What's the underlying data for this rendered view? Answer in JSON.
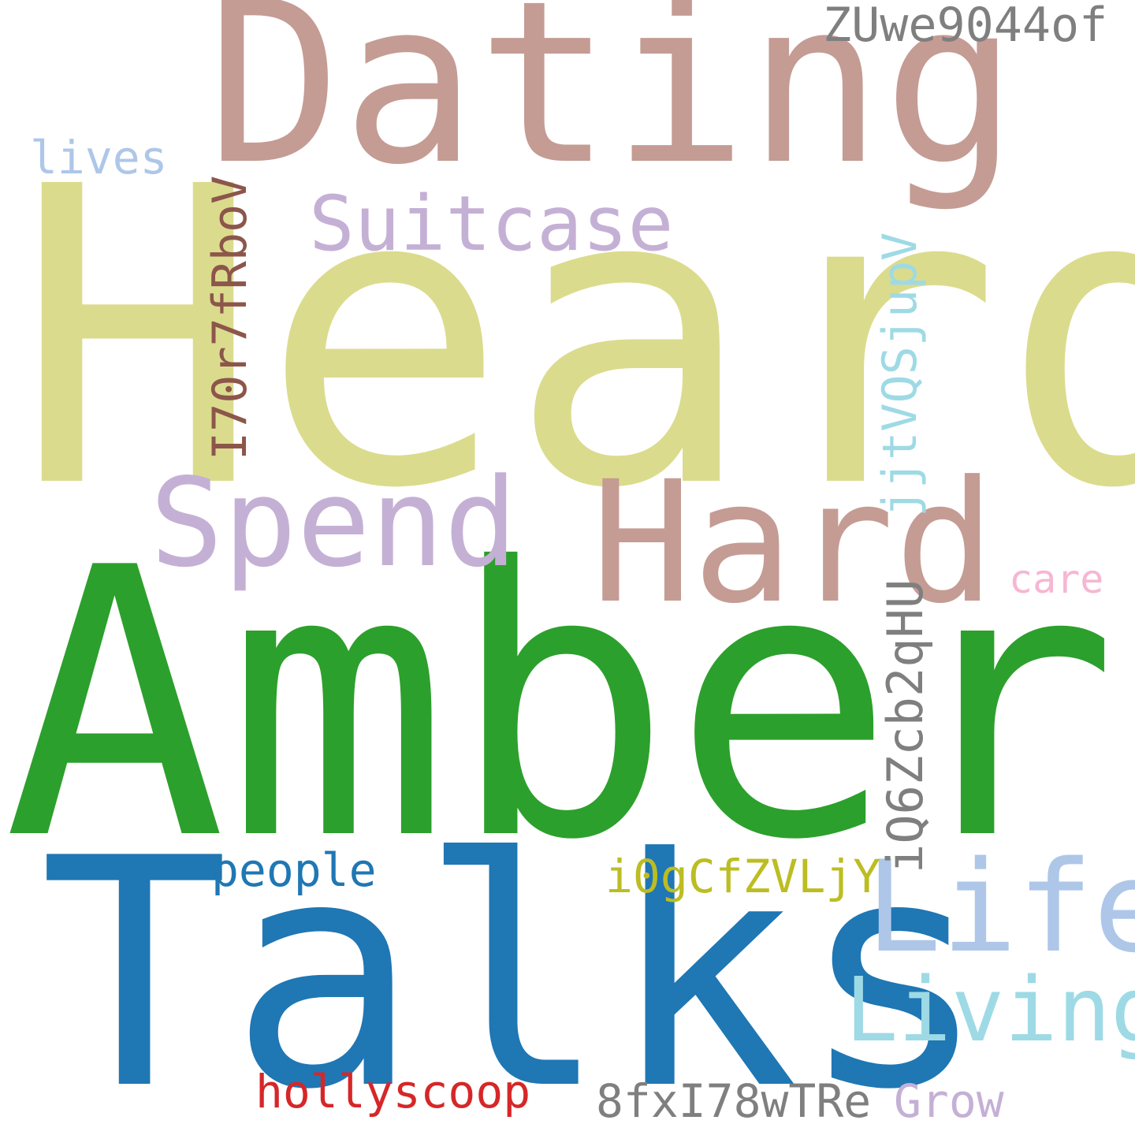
{
  "words": {
    "heard": {
      "text": "Heard",
      "color": "#dbdb8d"
    },
    "amber": {
      "text": "Amber",
      "color": "#2ca02c"
    },
    "talks": {
      "text": "Talks",
      "color": "#1f77b4"
    },
    "dating": {
      "text": "Dating",
      "color": "#c49c94"
    },
    "hard": {
      "text": "Hard",
      "color": "#c49c94"
    },
    "spend": {
      "text": "Spend",
      "color": "#c5b0d5"
    },
    "life": {
      "text": "Life",
      "color": "#aec7e8"
    },
    "living": {
      "text": "Living",
      "color": "#9edae5"
    },
    "suitcase": {
      "text": "Suitcase",
      "color": "#c5b0d5"
    },
    "zuwe": {
      "text": "ZUwe9044of",
      "color": "#7f7f7f"
    },
    "hollyscoop": {
      "text": "hollyscoop",
      "color": "#d62728"
    },
    "fx": {
      "text": "8fxI78wTRe",
      "color": "#7f7f7f"
    },
    "grow": {
      "text": "Grow",
      "color": "#c5b0d5"
    },
    "i0g": {
      "text": "i0gCfZVLjY",
      "color": "#bcbd22"
    },
    "people": {
      "text": "people",
      "color": "#1f77b4"
    },
    "lives": {
      "text": "lives",
      "color": "#aec7e8"
    },
    "care": {
      "text": "care",
      "color": "#f7b6d2"
    },
    "i70": {
      "text": "I70r7fRboV",
      "color": "#8c564b"
    },
    "jjt": {
      "text": "jjtVQSjupV",
      "color": "#9edae5"
    },
    "iq6": {
      "text": "iQ6Zcb2qHU",
      "color": "#7f7f7f"
    }
  }
}
